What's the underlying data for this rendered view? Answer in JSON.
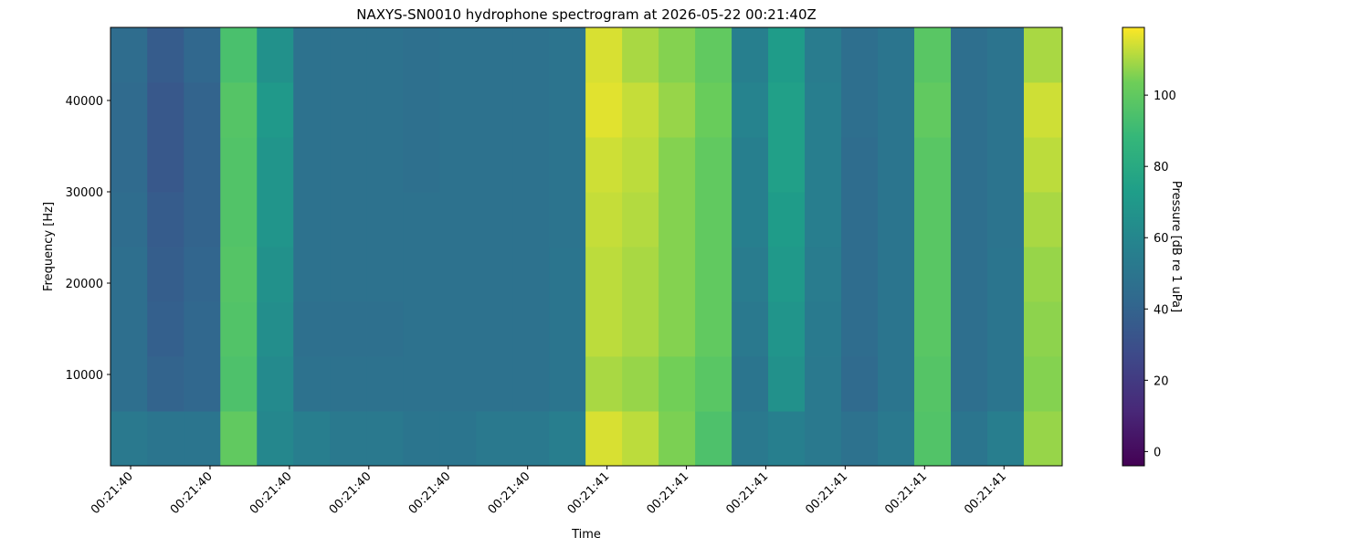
{
  "chart_data": {
    "type": "heatmap",
    "title": "NAXYS-SN0010 hydrophone spectrogram at 2026-05-22 00:21:40Z",
    "x_label": "Time",
    "y_label": "Frequency [Hz]",
    "colorbar_label": "Pressure [dB re 1 uPa]",
    "colormap": "viridis",
    "x": [
      40.097,
      40.166,
      40.235,
      40.304,
      40.373,
      40.442,
      40.511,
      40.58,
      40.649,
      40.718,
      40.787,
      40.856,
      40.925,
      40.994,
      41.063,
      41.132,
      41.201,
      41.27,
      41.339,
      41.408,
      41.477,
      41.546,
      41.615,
      41.684,
      41.753,
      41.822
    ],
    "y": [
      3000,
      9000,
      15000,
      21000,
      27000,
      33000,
      39000,
      45000
    ],
    "z": [
      [
        52,
        50,
        50,
        100,
        60,
        55,
        52,
        52,
        50,
        50,
        52,
        52,
        55,
        115,
        112,
        105,
        95,
        52,
        56,
        52,
        48,
        52,
        96,
        50,
        55,
        108
      ],
      [
        46,
        40,
        42,
        95,
        62,
        48,
        48,
        48,
        48,
        48,
        48,
        48,
        50,
        110,
        108,
        104,
        98,
        50,
        66,
        52,
        44,
        50,
        97,
        46,
        50,
        106
      ],
      [
        46,
        38,
        42,
        96,
        64,
        47,
        47,
        47,
        48,
        48,
        48,
        48,
        50,
        112,
        110,
        106,
        100,
        52,
        68,
        53,
        45,
        50,
        98,
        46,
        50,
        107
      ],
      [
        46,
        37,
        41,
        97,
        66,
        48,
        48,
        48,
        48,
        48,
        48,
        48,
        50,
        112,
        110,
        106,
        100,
        54,
        70,
        54,
        45,
        50,
        98,
        46,
        50,
        108
      ],
      [
        45,
        36,
        40,
        96,
        68,
        48,
        48,
        48,
        48,
        48,
        48,
        48,
        49,
        113,
        111,
        106,
        100,
        56,
        72,
        55,
        45,
        50,
        98,
        46,
        49,
        110
      ],
      [
        44,
        34,
        40,
        96,
        68,
        48,
        48,
        48,
        47,
        48,
        48,
        48,
        49,
        114,
        112,
        106,
        100,
        56,
        74,
        55,
        45,
        50,
        98,
        46,
        49,
        112
      ],
      [
        44,
        34,
        40,
        97,
        70,
        48,
        48,
        48,
        47,
        48,
        48,
        48,
        49,
        116,
        113,
        108,
        102,
        58,
        74,
        55,
        46,
        50,
        100,
        46,
        49,
        114
      ],
      [
        45,
        36,
        42,
        94,
        66,
        48,
        48,
        48,
        47,
        48,
        48,
        48,
        49,
        115,
        110,
        106,
        100,
        56,
        72,
        54,
        46,
        50,
        98,
        46,
        49,
        110
      ]
    ],
    "xlim": [
      40.062,
      41.86
    ],
    "xticks": [
      {
        "value": 40.1,
        "label": "00:21:40"
      },
      {
        "value": 40.25,
        "label": "00:21:40"
      },
      {
        "value": 40.4,
        "label": "00:21:40"
      },
      {
        "value": 40.55,
        "label": "00:21:40"
      },
      {
        "value": 40.7,
        "label": "00:21:40"
      },
      {
        "value": 40.85,
        "label": "00:21:40"
      },
      {
        "value": 41.0,
        "label": "00:21:41"
      },
      {
        "value": 41.15,
        "label": "00:21:41"
      },
      {
        "value": 41.3,
        "label": "00:21:41"
      },
      {
        "value": 41.45,
        "label": "00:21:41"
      },
      {
        "value": 41.6,
        "label": "00:21:41"
      },
      {
        "value": 41.75,
        "label": "00:21:41"
      }
    ],
    "ylim": [
      0,
      48000
    ],
    "yticks": [
      10000,
      20000,
      30000,
      40000
    ],
    "clim": [
      -4,
      119
    ],
    "cticks": [
      0,
      20,
      40,
      60,
      80,
      100
    ]
  }
}
